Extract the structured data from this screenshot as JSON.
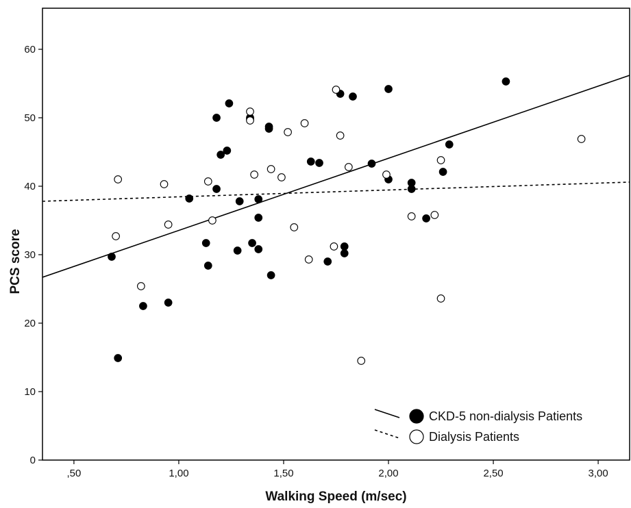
{
  "chart_data": {
    "type": "scatter",
    "title": "",
    "xlabel": "Walking Speed (m/sec)",
    "ylabel": "PCS score",
    "xlim": [
      0.35,
      3.15
    ],
    "ylim": [
      0,
      66
    ],
    "x_ticks": [
      0.5,
      1.0,
      1.5,
      2.0,
      2.5,
      3.0
    ],
    "x_tick_labels": [
      ",50",
      "1,00",
      "1,50",
      "2,00",
      "2,50",
      "3,00"
    ],
    "y_ticks": [
      0,
      10,
      20,
      30,
      40,
      50,
      60
    ],
    "y_tick_labels": [
      "0",
      "10",
      "20",
      "30",
      "40",
      "50",
      "60"
    ],
    "grid": false,
    "legend_position": "bottom-right",
    "colors": {
      "filled": "#000000",
      "open_fill": "#ffffff",
      "stroke": "#000000"
    },
    "series": [
      {
        "name": "CKD-5 non-dialysis Patients",
        "marker": "filled-circle",
        "line_style": "solid",
        "fit_line": {
          "x": [
            0.35,
            3.15
          ],
          "y": [
            26.7,
            56.2
          ]
        },
        "x": [
          0.68,
          0.71,
          0.83,
          0.95,
          1.05,
          1.13,
          1.14,
          1.18,
          1.18,
          1.2,
          1.23,
          1.24,
          1.28,
          1.29,
          1.34,
          1.34,
          1.35,
          1.38,
          1.38,
          1.38,
          1.43,
          1.43,
          1.44,
          1.63,
          1.67,
          1.71,
          1.77,
          1.79,
          1.79,
          1.83,
          1.92,
          2.0,
          2.0,
          2.11,
          2.11,
          2.18,
          2.26,
          2.29,
          2.56
        ],
        "y": [
          29.7,
          14.9,
          22.5,
          23.0,
          38.2,
          31.7,
          28.4,
          50.0,
          39.6,
          44.6,
          45.2,
          52.1,
          30.6,
          37.8,
          49.8,
          50.0,
          31.7,
          38.1,
          35.4,
          30.8,
          48.7,
          48.4,
          27.0,
          43.6,
          43.4,
          29.0,
          53.5,
          31.2,
          30.2,
          53.1,
          43.3,
          54.2,
          41.0,
          40.5,
          39.6,
          35.3,
          42.1,
          46.1,
          55.3
        ]
      },
      {
        "name": "Dialysis Patients",
        "marker": "open-circle",
        "line_style": "dotted",
        "fit_line": {
          "x": [
            0.35,
            3.15
          ],
          "y": [
            37.8,
            40.6
          ]
        },
        "x": [
          0.7,
          0.71,
          0.82,
          0.93,
          0.95,
          1.14,
          1.16,
          1.34,
          1.34,
          1.36,
          1.44,
          1.49,
          1.52,
          1.55,
          1.6,
          1.62,
          1.74,
          1.75,
          1.77,
          1.81,
          1.87,
          1.99,
          2.11,
          2.22,
          2.25,
          2.25,
          2.92
        ],
        "y": [
          32.7,
          41.0,
          25.4,
          40.3,
          34.4,
          40.7,
          35.0,
          49.6,
          50.9,
          41.7,
          42.5,
          41.3,
          47.9,
          34.0,
          49.2,
          29.3,
          31.2,
          54.1,
          47.4,
          42.8,
          14.5,
          41.7,
          35.6,
          35.8,
          43.8,
          23.6,
          46.9
        ]
      }
    ]
  }
}
